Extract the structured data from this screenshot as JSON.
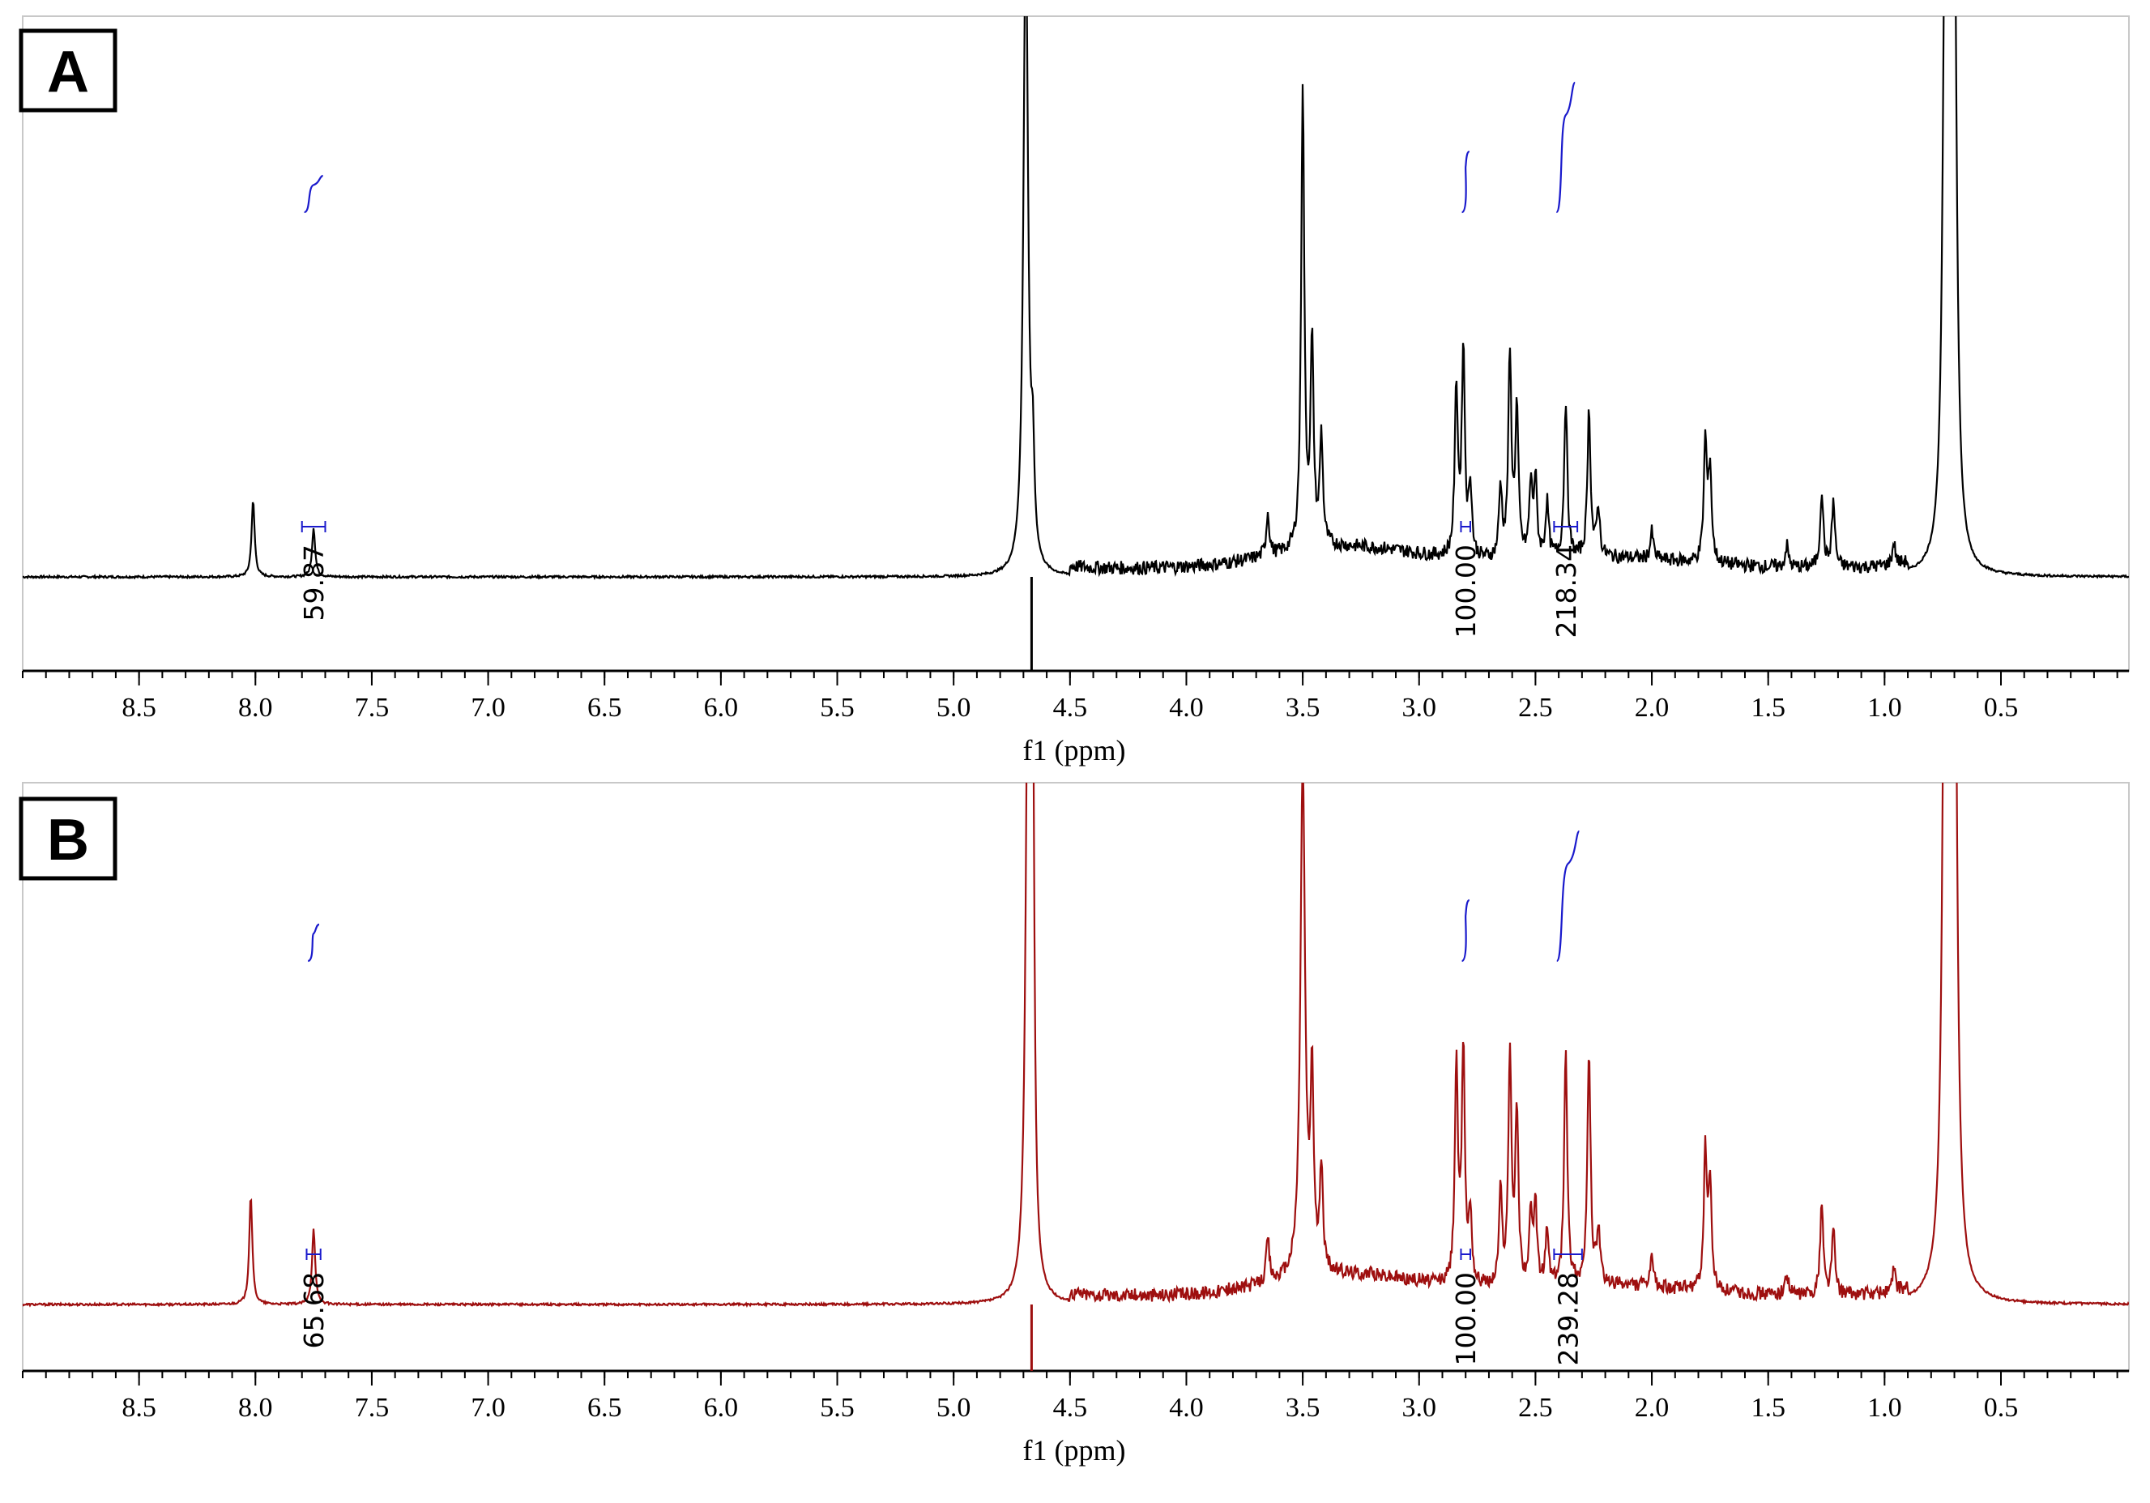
{
  "chart_data": [
    {
      "type": "line",
      "panel_label": "A",
      "xlabel": "f1 (ppm)",
      "xlim": [
        9.0,
        -0.05
      ],
      "x_reversed": true,
      "xticks": [
        "8.5",
        "8.0",
        "7.5",
        "7.0",
        "6.5",
        "6.0",
        "5.5",
        "5.0",
        "4.5",
        "4.0",
        "3.5",
        "3.0",
        "2.5",
        "2.0",
        "1.5",
        "1.0",
        "0.5"
      ],
      "line_color": "#000000",
      "integral_color": "#1a1acc",
      "peaks_ppm_rel_height": [
        [
          8.01,
          0.14
        ],
        [
          7.75,
          0.09
        ],
        [
          4.69,
          1.2
        ],
        [
          4.66,
          0.17
        ],
        [
          3.65,
          0.08
        ],
        [
          3.5,
          0.85
        ],
        [
          3.46,
          0.37
        ],
        [
          3.42,
          0.2
        ],
        [
          2.84,
          0.31
        ],
        [
          2.81,
          0.38
        ],
        [
          2.78,
          0.13
        ],
        [
          2.65,
          0.13
        ],
        [
          2.61,
          0.37
        ],
        [
          2.58,
          0.27
        ],
        [
          2.52,
          0.13
        ],
        [
          2.5,
          0.14
        ],
        [
          2.45,
          0.1
        ],
        [
          2.37,
          0.29
        ],
        [
          2.27,
          0.27
        ],
        [
          2.23,
          0.09
        ],
        [
          2.0,
          0.05
        ],
        [
          1.77,
          0.22
        ],
        [
          1.75,
          0.17
        ],
        [
          1.42,
          0.04
        ],
        [
          1.27,
          0.14
        ],
        [
          1.22,
          0.12
        ],
        [
          0.96,
          0.04
        ],
        [
          0.74,
          1.0
        ],
        [
          0.72,
          1.0
        ],
        [
          0.7,
          1.0
        ]
      ],
      "integrals": [
        {
          "label": "59.87",
          "from_ppm": 7.8,
          "to_ppm": 7.7
        },
        {
          "label": "100.00",
          "from_ppm": 2.82,
          "to_ppm": 2.78
        },
        {
          "label": "218.34",
          "from_ppm": 2.42,
          "to_ppm": 2.32
        }
      ]
    },
    {
      "type": "line",
      "panel_label": "B",
      "xlabel": "f1 (ppm)",
      "xlim": [
        9.0,
        -0.05
      ],
      "x_reversed": true,
      "xticks": [
        "8.5",
        "8.0",
        "7.5",
        "7.0",
        "6.5",
        "6.0",
        "5.5",
        "5.0",
        "4.5",
        "4.0",
        "3.5",
        "3.0",
        "2.5",
        "2.0",
        "1.5",
        "1.0",
        "0.5"
      ],
      "line_color": "#9e0f0f",
      "integral_color": "#1a1acc",
      "peaks_ppm_rel_height": [
        [
          8.02,
          0.2
        ],
        [
          7.75,
          0.14
        ],
        [
          4.68,
          1.2
        ],
        [
          4.66,
          0.9
        ],
        [
          3.65,
          0.08
        ],
        [
          3.5,
          0.94
        ],
        [
          3.46,
          0.35
        ],
        [
          3.42,
          0.18
        ],
        [
          2.84,
          0.4
        ],
        [
          2.81,
          0.43
        ],
        [
          2.78,
          0.13
        ],
        [
          2.65,
          0.17
        ],
        [
          2.61,
          0.42
        ],
        [
          2.58,
          0.32
        ],
        [
          2.52,
          0.12
        ],
        [
          2.5,
          0.14
        ],
        [
          2.45,
          0.1
        ],
        [
          2.37,
          0.44
        ],
        [
          2.27,
          0.43
        ],
        [
          2.23,
          0.1
        ],
        [
          2.0,
          0.05
        ],
        [
          1.77,
          0.25
        ],
        [
          1.75,
          0.19
        ],
        [
          1.42,
          0.04
        ],
        [
          1.27,
          0.17
        ],
        [
          1.22,
          0.12
        ],
        [
          0.96,
          0.04
        ],
        [
          0.74,
          1.25
        ],
        [
          0.72,
          1.25
        ],
        [
          0.7,
          1.25
        ]
      ],
      "integrals": [
        {
          "label": "65.68",
          "from_ppm": 7.78,
          "to_ppm": 7.72
        },
        {
          "label": "100.00",
          "from_ppm": 2.82,
          "to_ppm": 2.78
        },
        {
          "label": "239.28",
          "from_ppm": 2.42,
          "to_ppm": 2.3
        }
      ]
    }
  ]
}
